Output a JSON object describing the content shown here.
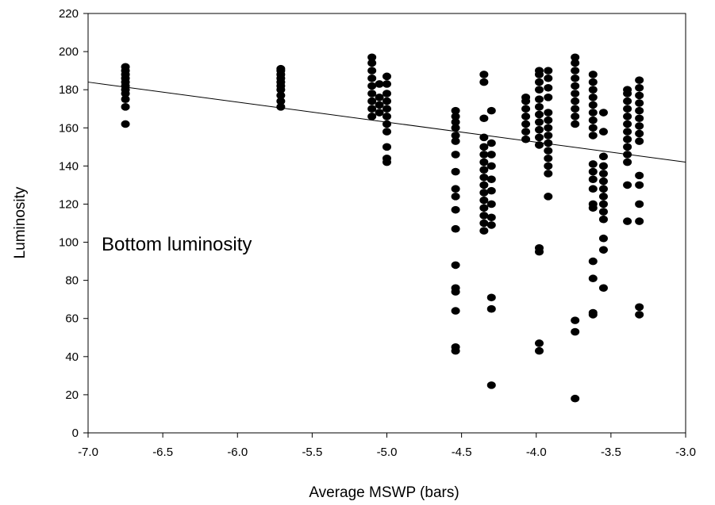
{
  "chart_data": {
    "type": "scatter",
    "title": "",
    "xlabel": "Average MSWP (bars)",
    "ylabel": "Luminosity",
    "xlim": [
      -7.0,
      -3.0
    ],
    "ylim": [
      0,
      220
    ],
    "x_ticks": [
      "-7.0",
      "-6.5",
      "-6.0",
      "-5.5",
      "-5.0",
      "-4.5",
      "-4.0",
      "-3.5",
      "-3.0"
    ],
    "y_ticks": [
      "0",
      "20",
      "40",
      "60",
      "80",
      "100",
      "120",
      "140",
      "160",
      "180",
      "200",
      "220"
    ],
    "annotation": "Bottom luminosity",
    "grid": false,
    "marker_color": "#000000",
    "trendline": {
      "x": [
        -7.0,
        -3.0
      ],
      "y": [
        184,
        142
      ]
    },
    "points": [
      [
        -6.75,
        162
      ],
      [
        -6.75,
        171
      ],
      [
        -6.75,
        175
      ],
      [
        -6.75,
        178
      ],
      [
        -6.75,
        180
      ],
      [
        -6.75,
        182
      ],
      [
        -6.75,
        184
      ],
      [
        -6.75,
        186
      ],
      [
        -6.75,
        188
      ],
      [
        -6.75,
        190
      ],
      [
        -6.75,
        192
      ],
      [
        -5.71,
        171
      ],
      [
        -5.71,
        174
      ],
      [
        -5.71,
        177
      ],
      [
        -5.71,
        180
      ],
      [
        -5.71,
        182
      ],
      [
        -5.71,
        184
      ],
      [
        -5.71,
        186
      ],
      [
        -5.71,
        188
      ],
      [
        -5.71,
        190
      ],
      [
        -5.71,
        191
      ],
      [
        -5.1,
        166
      ],
      [
        -5.1,
        170
      ],
      [
        -5.1,
        174
      ],
      [
        -5.1,
        178
      ],
      [
        -5.1,
        182
      ],
      [
        -5.1,
        186
      ],
      [
        -5.1,
        190
      ],
      [
        -5.1,
        194
      ],
      [
        -5.1,
        197
      ],
      [
        -5.05,
        168
      ],
      [
        -5.05,
        172
      ],
      [
        -5.05,
        176
      ],
      [
        -5.05,
        183
      ],
      [
        -5.0,
        142
      ],
      [
        -5.0,
        144
      ],
      [
        -5.0,
        150
      ],
      [
        -5.0,
        158
      ],
      [
        -5.0,
        162
      ],
      [
        -5.0,
        166
      ],
      [
        -5.0,
        170
      ],
      [
        -5.0,
        174
      ],
      [
        -5.0,
        178
      ],
      [
        -5.0,
        183
      ],
      [
        -5.0,
        187
      ],
      [
        -4.54,
        43
      ],
      [
        -4.54,
        45
      ],
      [
        -4.54,
        64
      ],
      [
        -4.54,
        74
      ],
      [
        -4.54,
        76
      ],
      [
        -4.54,
        88
      ],
      [
        -4.54,
        107
      ],
      [
        -4.54,
        117
      ],
      [
        -4.54,
        124
      ],
      [
        -4.54,
        128
      ],
      [
        -4.54,
        137
      ],
      [
        -4.54,
        146
      ],
      [
        -4.54,
        153
      ],
      [
        -4.54,
        156
      ],
      [
        -4.54,
        160
      ],
      [
        -4.54,
        163
      ],
      [
        -4.54,
        166
      ],
      [
        -4.54,
        169
      ],
      [
        -4.35,
        106
      ],
      [
        -4.35,
        110
      ],
      [
        -4.35,
        114
      ],
      [
        -4.35,
        118
      ],
      [
        -4.35,
        122
      ],
      [
        -4.35,
        126
      ],
      [
        -4.35,
        130
      ],
      [
        -4.35,
        134
      ],
      [
        -4.35,
        138
      ],
      [
        -4.35,
        142
      ],
      [
        -4.35,
        146
      ],
      [
        -4.35,
        150
      ],
      [
        -4.35,
        155
      ],
      [
        -4.35,
        165
      ],
      [
        -4.35,
        184
      ],
      [
        -4.35,
        188
      ],
      [
        -4.3,
        25
      ],
      [
        -4.3,
        65
      ],
      [
        -4.3,
        71
      ],
      [
        -4.3,
        109
      ],
      [
        -4.3,
        113
      ],
      [
        -4.3,
        120
      ],
      [
        -4.3,
        127
      ],
      [
        -4.3,
        133
      ],
      [
        -4.3,
        140
      ],
      [
        -4.3,
        146
      ],
      [
        -4.3,
        152
      ],
      [
        -4.3,
        169
      ],
      [
        -4.07,
        154
      ],
      [
        -4.07,
        158
      ],
      [
        -4.07,
        162
      ],
      [
        -4.07,
        166
      ],
      [
        -4.07,
        170
      ],
      [
        -4.07,
        174
      ],
      [
        -4.07,
        176
      ],
      [
        -3.98,
        43
      ],
      [
        -3.98,
        47
      ],
      [
        -3.98,
        95
      ],
      [
        -3.98,
        97
      ],
      [
        -3.98,
        151
      ],
      [
        -3.98,
        155
      ],
      [
        -3.98,
        159
      ],
      [
        -3.98,
        163
      ],
      [
        -3.98,
        167
      ],
      [
        -3.98,
        171
      ],
      [
        -3.98,
        175
      ],
      [
        -3.98,
        180
      ],
      [
        -3.98,
        184
      ],
      [
        -3.98,
        188
      ],
      [
        -3.98,
        190
      ],
      [
        -3.92,
        124
      ],
      [
        -3.92,
        136
      ],
      [
        -3.92,
        140
      ],
      [
        -3.92,
        144
      ],
      [
        -3.92,
        148
      ],
      [
        -3.92,
        152
      ],
      [
        -3.92,
        156
      ],
      [
        -3.92,
        160
      ],
      [
        -3.92,
        164
      ],
      [
        -3.92,
        168
      ],
      [
        -3.92,
        176
      ],
      [
        -3.92,
        181
      ],
      [
        -3.92,
        186
      ],
      [
        -3.92,
        190
      ],
      [
        -3.74,
        18
      ],
      [
        -3.74,
        53
      ],
      [
        -3.74,
        59
      ],
      [
        -3.74,
        162
      ],
      [
        -3.74,
        166
      ],
      [
        -3.74,
        170
      ],
      [
        -3.74,
        174
      ],
      [
        -3.74,
        178
      ],
      [
        -3.74,
        182
      ],
      [
        -3.74,
        186
      ],
      [
        -3.74,
        190
      ],
      [
        -3.74,
        194
      ],
      [
        -3.74,
        197
      ],
      [
        -3.62,
        62
      ],
      [
        -3.62,
        63
      ],
      [
        -3.62,
        81
      ],
      [
        -3.62,
        90
      ],
      [
        -3.62,
        118
      ],
      [
        -3.62,
        120
      ],
      [
        -3.62,
        128
      ],
      [
        -3.62,
        133
      ],
      [
        -3.62,
        137
      ],
      [
        -3.62,
        141
      ],
      [
        -3.62,
        156
      ],
      [
        -3.62,
        160
      ],
      [
        -3.62,
        164
      ],
      [
        -3.62,
        168
      ],
      [
        -3.62,
        172
      ],
      [
        -3.62,
        176
      ],
      [
        -3.62,
        180
      ],
      [
        -3.62,
        184
      ],
      [
        -3.62,
        188
      ],
      [
        -3.55,
        76
      ],
      [
        -3.55,
        96
      ],
      [
        -3.55,
        102
      ],
      [
        -3.55,
        112
      ],
      [
        -3.55,
        116
      ],
      [
        -3.55,
        120
      ],
      [
        -3.55,
        124
      ],
      [
        -3.55,
        128
      ],
      [
        -3.55,
        132
      ],
      [
        -3.55,
        136
      ],
      [
        -3.55,
        140
      ],
      [
        -3.55,
        145
      ],
      [
        -3.55,
        158
      ],
      [
        -3.55,
        168
      ],
      [
        -3.39,
        111
      ],
      [
        -3.39,
        130
      ],
      [
        -3.39,
        142
      ],
      [
        -3.39,
        146
      ],
      [
        -3.39,
        150
      ],
      [
        -3.39,
        154
      ],
      [
        -3.39,
        158
      ],
      [
        -3.39,
        162
      ],
      [
        -3.39,
        166
      ],
      [
        -3.39,
        170
      ],
      [
        -3.39,
        174
      ],
      [
        -3.39,
        178
      ],
      [
        -3.39,
        180
      ],
      [
        -3.31,
        62
      ],
      [
        -3.31,
        66
      ],
      [
        -3.31,
        111
      ],
      [
        -3.31,
        120
      ],
      [
        -3.31,
        130
      ],
      [
        -3.31,
        135
      ],
      [
        -3.31,
        153
      ],
      [
        -3.31,
        157
      ],
      [
        -3.31,
        161
      ],
      [
        -3.31,
        165
      ],
      [
        -3.31,
        169
      ],
      [
        -3.31,
        173
      ],
      [
        -3.31,
        177
      ],
      [
        -3.31,
        181
      ],
      [
        -3.31,
        185
      ]
    ]
  }
}
